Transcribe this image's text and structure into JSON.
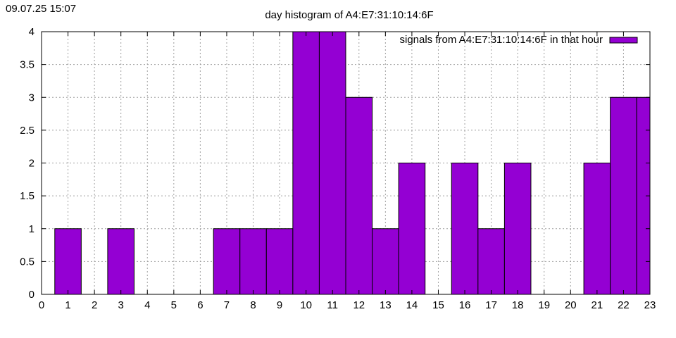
{
  "timestamp": "09.07.25 15:07",
  "chart_data": {
    "type": "bar",
    "title": "day histogram of A4:E7:31:10:14:6F",
    "xlabel": "",
    "ylabel": "",
    "xlim": [
      0,
      23
    ],
    "ylim": [
      0,
      4
    ],
    "x_ticks": [
      "0",
      "1",
      "2",
      "3",
      "4",
      "5",
      "6",
      "7",
      "8",
      "9",
      "10",
      "11",
      "12",
      "13",
      "14",
      "15",
      "16",
      "17",
      "18",
      "19",
      "20",
      "21",
      "22",
      "23"
    ],
    "y_ticks": [
      "0",
      "0.5",
      "1",
      "1.5",
      "2",
      "2.5",
      "3",
      "3.5",
      "4"
    ],
    "grid": true,
    "legend_position": "top-right",
    "series": [
      {
        "name": "signals from A4:E7:31:10:14:6F in that hour",
        "color": "#9400d3",
        "x": [
          1,
          3,
          7,
          8,
          9,
          10,
          11,
          12,
          13,
          14,
          16,
          17,
          18,
          21,
          22,
          23
        ],
        "values": [
          1,
          1,
          1,
          1,
          1,
          4,
          4,
          3,
          1,
          2,
          2,
          1,
          2,
          2,
          3,
          3
        ]
      }
    ]
  }
}
